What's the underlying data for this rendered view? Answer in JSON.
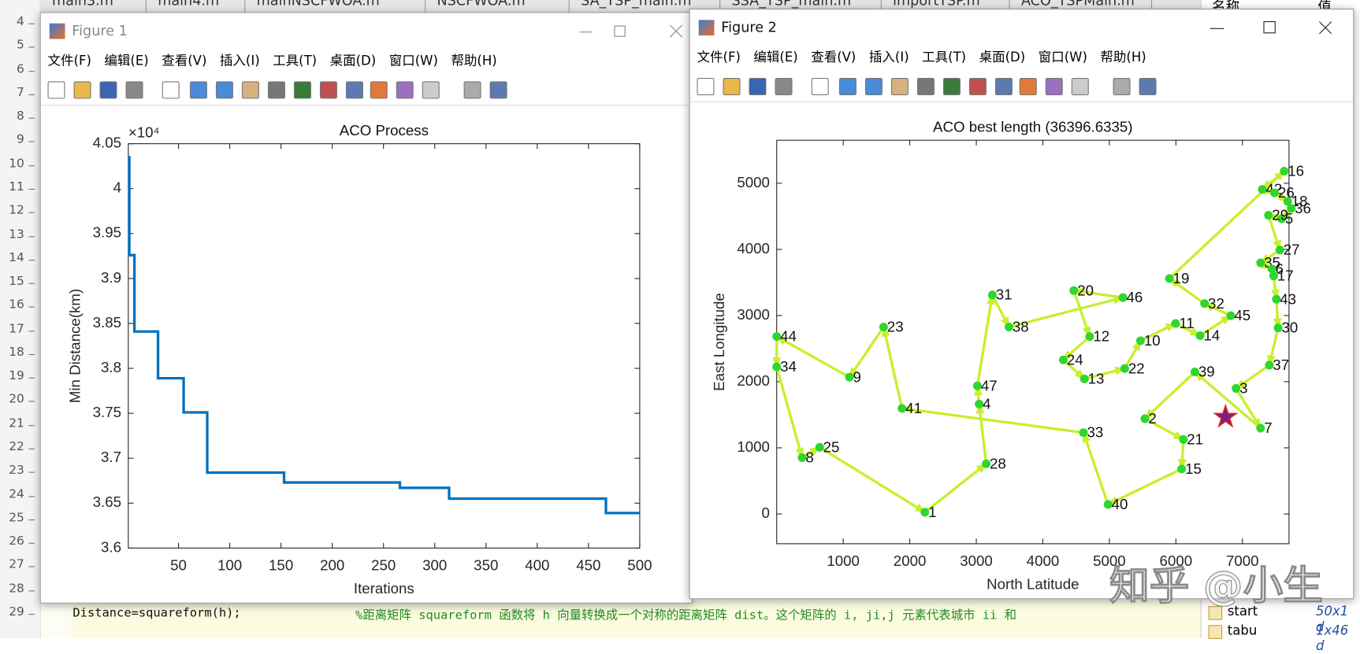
{
  "tabs": [
    "main3.m",
    "main4.m",
    "mainNSCFWOA.m",
    "NSCFWOA.m",
    "SA_TSP_main.m",
    "SSA_TSP_main.m",
    "importTSP.m",
    "ACO_TSPMain.m"
  ],
  "line_numbers": [
    4,
    5,
    6,
    7,
    8,
    9,
    10,
    11,
    12,
    13,
    14,
    15,
    16,
    17,
    18,
    19,
    20,
    21,
    22,
    23,
    24,
    25,
    26,
    27,
    28,
    29
  ],
  "code": {
    "line": "Distance=squareform(h);",
    "comment": "%距离矩阵 squareform 函数将 h 向量转换成一个对称的距离矩阵 dist。这个矩阵的 i, ji,j 元素代表城市 ii 和"
  },
  "workspace": {
    "header": [
      "名称",
      "值"
    ],
    "rows": [
      [
        "start",
        "50x1 d"
      ],
      [
        "tabu",
        "1x46 d"
      ]
    ]
  },
  "figure1": {
    "title": "Figure 1",
    "menu": [
      "文件(F)",
      "编辑(E)",
      "查看(V)",
      "插入(I)",
      "工具(T)",
      "桌面(D)",
      "窗口(W)",
      "帮助(H)"
    ]
  },
  "figure2": {
    "title": "Figure 2",
    "menu": [
      "文件(F)",
      "编辑(E)",
      "查看(V)",
      "插入(I)",
      "工具(T)",
      "桌面(D)",
      "窗口(W)",
      "帮助(H)"
    ]
  },
  "watermark": "知乎 @小生",
  "chart_data": [
    {
      "type": "line",
      "title": "ACO Process",
      "x_label": "Iterations",
      "y_label": "Min Distance(km)",
      "y_exponent": "×10⁴",
      "color": "#0072bd",
      "x": [
        1,
        2,
        2,
        7,
        7,
        30,
        30,
        55,
        55,
        78,
        78,
        153,
        153,
        266,
        266,
        314,
        314,
        467,
        467,
        500
      ],
      "values": [
        4.035,
        4.035,
        3.926,
        3.926,
        3.841,
        3.841,
        3.789,
        3.789,
        3.751,
        3.751,
        3.684,
        3.684,
        3.673,
        3.673,
        3.667,
        3.667,
        3.655,
        3.655,
        3.639,
        3.639
      ],
      "xlim": [
        1,
        500
      ],
      "xticks": [
        50,
        100,
        150,
        200,
        250,
        300,
        350,
        400,
        450,
        500
      ],
      "ylim": [
        3.6,
        4.05
      ],
      "yticks": [
        3.6,
        3.65,
        3.7,
        3.75,
        3.8,
        3.85,
        3.9,
        3.95,
        4,
        4.05
      ]
    },
    {
      "type": "scatter",
      "title": "ACO best length (36396.6335)",
      "x_label": "North Latitude",
      "y_label": "East Longitude",
      "color": "#2fd62f",
      "line_color": "#c6f02a",
      "start_color": "#7a1f86",
      "labels": [
        "1",
        "28",
        "4",
        "47",
        "31",
        "38",
        "46",
        "20",
        "12",
        "24",
        "13",
        "22",
        "10",
        "11",
        "14",
        "45",
        "32",
        "19",
        "16",
        "42",
        "26",
        "18",
        "36",
        "5",
        "29",
        "27",
        "35",
        "6",
        "17",
        "43",
        "30",
        "37",
        "3",
        "7",
        "39",
        "2",
        "21",
        "15",
        "40",
        "33",
        "41",
        "23",
        "9",
        "44",
        "34",
        "8",
        "25"
      ],
      "x": [
        2227,
        3149,
        3043,
        3017,
        3241,
        3491,
        5204,
        4466,
        4704,
        4308,
        4625,
        5231,
        5468,
        5995,
        6364,
        6825,
        6430,
        5903,
        7628,
        7299,
        7483,
        7681,
        7734,
        7589,
        7391,
        7563,
        7273,
        7444,
        7470,
        7510,
        7536,
        7404,
        6904,
        7273,
        6285,
        5534,
        6113,
        6087,
        4980,
        4611,
        1884,
        1607,
        1094,
        0,
        0,
        382,
        646
      ],
      "values": [
        26,
        759,
        1662,
        1937,
        3312,
        2827,
        3272,
        3377,
        2683,
        2330,
        2042,
        2199,
        2618,
        2880,
        2696,
        2997,
        3181,
        3560,
        5183,
        4908,
        4856,
        4725,
        4620,
        4463,
        4516,
        3992,
        3796,
        3704,
        3599,
        3246,
        2814,
        2251,
        1898,
        1296,
        2147,
        1440,
        1126,
        681,
        144,
        1230,
        1597,
        2827,
        2068,
        2683,
        2225,
        851,
        1008
      ],
      "start_x": 6746,
      "start_y": 1466,
      "xlim": [
        0,
        7700
      ],
      "xticks": [
        1000,
        2000,
        3000,
        4000,
        5000,
        6000,
        7000
      ],
      "ylim": [
        -450,
        5650
      ],
      "yticks": [
        0,
        1000,
        2000,
        3000,
        4000,
        5000
      ]
    }
  ]
}
